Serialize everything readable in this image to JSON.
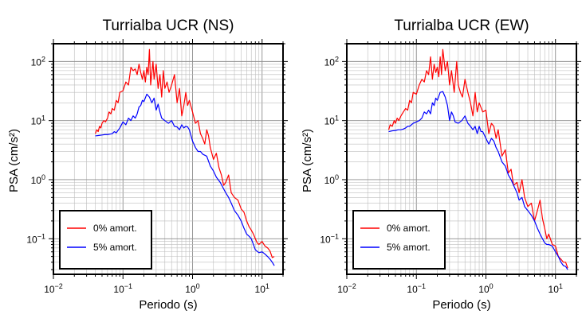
{
  "chart_data": [
    {
      "type": "line",
      "title": "Turrialba UCR (NS)",
      "xlabel": "Periodo (s)",
      "ylabel": "PSA (cm/s²)",
      "xscale": "log",
      "yscale": "log",
      "xlim": [
        0.01,
        20
      ],
      "ylim": [
        0.025,
        200
      ],
      "x_ticks": [
        {
          "base": "10",
          "exp": "−2"
        },
        {
          "base": "10",
          "exp": "−1"
        },
        {
          "base": "10",
          "exp": "0"
        },
        {
          "base": "10",
          "exp": "1"
        }
      ],
      "y_ticks": [
        {
          "base": "10",
          "exp": "−1"
        },
        {
          "base": "10",
          "exp": "0"
        },
        {
          "base": "10",
          "exp": "1"
        },
        {
          "base": "10",
          "exp": "2"
        }
      ],
      "grid": true,
      "legend_position": "bottom-left",
      "series": [
        {
          "name": "0% amort.",
          "color": "#ff0000",
          "x": [
            0.04,
            0.042,
            0.044,
            0.046,
            0.048,
            0.05,
            0.053,
            0.056,
            0.06,
            0.063,
            0.067,
            0.07,
            0.075,
            0.08,
            0.085,
            0.09,
            0.1,
            0.11,
            0.12,
            0.13,
            0.14,
            0.15,
            0.16,
            0.17,
            0.18,
            0.19,
            0.2,
            0.21,
            0.22,
            0.23,
            0.24,
            0.25,
            0.27,
            0.28,
            0.3,
            0.32,
            0.34,
            0.36,
            0.38,
            0.4,
            0.43,
            0.46,
            0.5,
            0.55,
            0.6,
            0.65,
            0.7,
            0.75,
            0.8,
            0.85,
            0.9,
            1.0,
            1.1,
            1.2,
            1.3,
            1.4,
            1.5,
            1.6,
            1.7,
            1.8,
            2.0,
            2.2,
            2.4,
            2.6,
            2.8,
            3.0,
            3.3,
            3.6,
            4.0,
            4.5,
            5.0,
            5.5,
            6.0,
            6.5,
            7.0,
            7.5,
            8.0,
            8.5,
            9.0,
            10,
            11,
            12,
            13,
            14,
            15
          ],
          "values": [
            6,
            7,
            6.5,
            8,
            7.5,
            9,
            10,
            9.5,
            11,
            14,
            13,
            16,
            15,
            22,
            20,
            30,
            32,
            45,
            40,
            80,
            70,
            75,
            60,
            90,
            65,
            50,
            70,
            45,
            80,
            60,
            160,
            40,
            100,
            50,
            90,
            35,
            60,
            25,
            70,
            35,
            45,
            30,
            40,
            60,
            20,
            35,
            12,
            18,
            30,
            18,
            22,
            14,
            9,
            10,
            6,
            5,
            4,
            7,
            5.5,
            3.5,
            2.2,
            2.8,
            1.6,
            1.2,
            0.8,
            0.9,
            1.2,
            0.6,
            0.5,
            0.45,
            0.32,
            0.28,
            0.2,
            0.16,
            0.14,
            0.12,
            0.1,
            0.085,
            0.08,
            0.09,
            0.075,
            0.07,
            0.062,
            0.048,
            0.05
          ]
        },
        {
          "name": "5% amort.",
          "color": "#0000ff",
          "x": [
            0.04,
            0.045,
            0.05,
            0.055,
            0.06,
            0.065,
            0.07,
            0.075,
            0.08,
            0.09,
            0.1,
            0.11,
            0.12,
            0.13,
            0.14,
            0.15,
            0.16,
            0.17,
            0.18,
            0.19,
            0.2,
            0.22,
            0.24,
            0.26,
            0.28,
            0.3,
            0.32,
            0.34,
            0.36,
            0.4,
            0.45,
            0.5,
            0.55,
            0.6,
            0.65,
            0.7,
            0.75,
            0.8,
            0.85,
            0.9,
            1.0,
            1.1,
            1.2,
            1.3,
            1.4,
            1.6,
            1.8,
            2.0,
            2.2,
            2.5,
            2.8,
            3.0,
            3.3,
            3.6,
            4.0,
            4.5,
            5.0,
            5.5,
            6.0,
            6.5,
            7.0,
            7.5,
            8.0,
            9.0,
            10,
            11,
            12,
            13,
            14,
            15
          ],
          "values": [
            5.5,
            5.6,
            5.7,
            5.8,
            5.8,
            5.9,
            6.0,
            6.5,
            6.2,
            7.5,
            9.5,
            8.5,
            11,
            10,
            12,
            11,
            13,
            17,
            18,
            22,
            21,
            28,
            25,
            20,
            24,
            15,
            19,
            14,
            11,
            10,
            9,
            10,
            8,
            7.8,
            7,
            8.5,
            7.5,
            8,
            7.8,
            7,
            4.5,
            3.5,
            3.0,
            3.0,
            2.7,
            2.5,
            1.7,
            1.4,
            1.1,
            0.9,
            0.7,
            0.6,
            0.5,
            0.4,
            0.3,
            0.25,
            0.2,
            0.15,
            0.12,
            0.11,
            0.1,
            0.08,
            0.065,
            0.058,
            0.06,
            0.055,
            0.05,
            0.045,
            0.04,
            0.035
          ]
        }
      ]
    },
    {
      "type": "line",
      "title": "Turrialba UCR (EW)",
      "xlabel": "Periodo (s)",
      "ylabel": "PSA (cm/s²)",
      "xscale": "log",
      "yscale": "log",
      "xlim": [
        0.01,
        20
      ],
      "ylim": [
        0.025,
        200
      ],
      "x_ticks": [
        {
          "base": "10",
          "exp": "−2"
        },
        {
          "base": "10",
          "exp": "−1"
        },
        {
          "base": "10",
          "exp": "0"
        },
        {
          "base": "10",
          "exp": "1"
        }
      ],
      "y_ticks": [
        {
          "base": "10",
          "exp": "−1"
        },
        {
          "base": "10",
          "exp": "0"
        },
        {
          "base": "10",
          "exp": "1"
        },
        {
          "base": "10",
          "exp": "2"
        }
      ],
      "grid": true,
      "legend_position": "bottom-left",
      "series": [
        {
          "name": "0% amort.",
          "color": "#ff0000",
          "x": [
            0.04,
            0.042,
            0.045,
            0.048,
            0.05,
            0.053,
            0.056,
            0.06,
            0.065,
            0.07,
            0.075,
            0.08,
            0.085,
            0.09,
            0.1,
            0.11,
            0.12,
            0.13,
            0.14,
            0.15,
            0.16,
            0.17,
            0.18,
            0.19,
            0.2,
            0.21,
            0.22,
            0.23,
            0.24,
            0.26,
            0.28,
            0.3,
            0.32,
            0.35,
            0.38,
            0.4,
            0.43,
            0.46,
            0.5,
            0.55,
            0.6,
            0.65,
            0.7,
            0.75,
            0.8,
            0.9,
            1.0,
            1.1,
            1.2,
            1.3,
            1.4,
            1.5,
            1.7,
            1.9,
            2.1,
            2.3,
            2.5,
            2.8,
            3.0,
            3.3,
            3.6,
            4.0,
            4.5,
            5.0,
            5.5,
            6.0,
            6.5,
            7.0,
            7.5,
            8.0,
            9.0,
            10,
            11,
            12,
            13,
            14,
            15
          ],
          "values": [
            7,
            8.5,
            8,
            10,
            9,
            11,
            10,
            12,
            14,
            16,
            15,
            22,
            20,
            30,
            28,
            40,
            50,
            45,
            70,
            60,
            120,
            50,
            90,
            65,
            80,
            55,
            120,
            60,
            160,
            70,
            100,
            40,
            70,
            30,
            100,
            40,
            30,
            25,
            50,
            30,
            20,
            12,
            30,
            14,
            20,
            14,
            15,
            6,
            9,
            8,
            5,
            7,
            2.5,
            3.2,
            1.3,
            1.5,
            0.8,
            0.9,
            0.6,
            1.0,
            0.5,
            0.35,
            0.4,
            0.2,
            0.3,
            0.45,
            0.22,
            0.15,
            0.1,
            0.12,
            0.08,
            0.075,
            0.05,
            0.045,
            0.04,
            0.04,
            0.032
          ]
        },
        {
          "name": "5% amort.",
          "color": "#0000ff",
          "x": [
            0.04,
            0.045,
            0.05,
            0.055,
            0.06,
            0.065,
            0.07,
            0.075,
            0.08,
            0.09,
            0.1,
            0.11,
            0.12,
            0.13,
            0.14,
            0.15,
            0.16,
            0.17,
            0.18,
            0.19,
            0.2,
            0.22,
            0.24,
            0.26,
            0.28,
            0.3,
            0.32,
            0.34,
            0.36,
            0.4,
            0.45,
            0.5,
            0.55,
            0.6,
            0.65,
            0.7,
            0.75,
            0.8,
            0.85,
            0.9,
            1.0,
            1.1,
            1.2,
            1.3,
            1.4,
            1.5,
            1.7,
            1.9,
            2.1,
            2.3,
            2.5,
            2.8,
            3.0,
            3.3,
            3.6,
            4.0,
            4.5,
            5.0,
            5.5,
            6.0,
            6.5,
            7.0,
            7.5,
            8.0,
            9.0,
            10,
            11,
            12,
            13,
            14,
            15
          ],
          "values": [
            6.5,
            6.7,
            6.8,
            7.0,
            7.0,
            7.2,
            7.5,
            8.0,
            8.0,
            9.0,
            9.5,
            10,
            11,
            14,
            13,
            15,
            13,
            20,
            18,
            24,
            22,
            30,
            31,
            25,
            18,
            10,
            14,
            12,
            9.5,
            9.0,
            10,
            12,
            9,
            8,
            7,
            8,
            6,
            8,
            6.5,
            6.5,
            5,
            4,
            5,
            4.5,
            3.5,
            3.0,
            2.0,
            1.7,
            1.2,
            1.0,
            0.8,
            0.6,
            0.45,
            0.5,
            0.35,
            0.3,
            0.25,
            0.2,
            0.15,
            0.12,
            0.1,
            0.085,
            0.08,
            0.08,
            0.075,
            0.06,
            0.05,
            0.04,
            0.035,
            0.034,
            0.03
          ]
        }
      ]
    }
  ]
}
